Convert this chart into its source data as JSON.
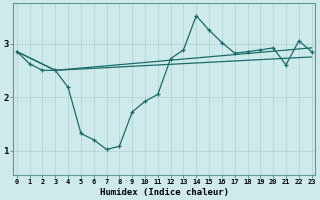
{
  "xlabel": "Humidex (Indice chaleur)",
  "bg_color": "#ceeaea",
  "line_color": "#1a6b6b",
  "grid_color": "#b8d8d8",
  "x_ticks": [
    0,
    1,
    2,
    3,
    4,
    5,
    6,
    7,
    8,
    9,
    10,
    11,
    12,
    13,
    14,
    15,
    16,
    17,
    18,
    19,
    20,
    21,
    22,
    23
  ],
  "y_ticks": [
    1,
    2,
    3
  ],
  "xlim": [
    -0.3,
    23.3
  ],
  "ylim": [
    0.55,
    3.75
  ],
  "series1_x": [
    0,
    1,
    2,
    3,
    4,
    5,
    6,
    7,
    8,
    9,
    10,
    11,
    12,
    13,
    14,
    15,
    16,
    17,
    18,
    19,
    20,
    21,
    22,
    23
  ],
  "series1_y": [
    2.85,
    2.62,
    2.5,
    2.5,
    2.18,
    1.32,
    1.2,
    1.02,
    1.08,
    1.72,
    1.92,
    2.05,
    2.72,
    2.88,
    3.52,
    3.25,
    3.02,
    2.82,
    2.85,
    2.88,
    2.92,
    2.6,
    3.05,
    2.85
  ],
  "series2_x": [
    0,
    3,
    23
  ],
  "series2_y": [
    2.85,
    2.5,
    2.92
  ],
  "series3_x": [
    0,
    3,
    23
  ],
  "series3_y": [
    2.85,
    2.5,
    2.75
  ]
}
